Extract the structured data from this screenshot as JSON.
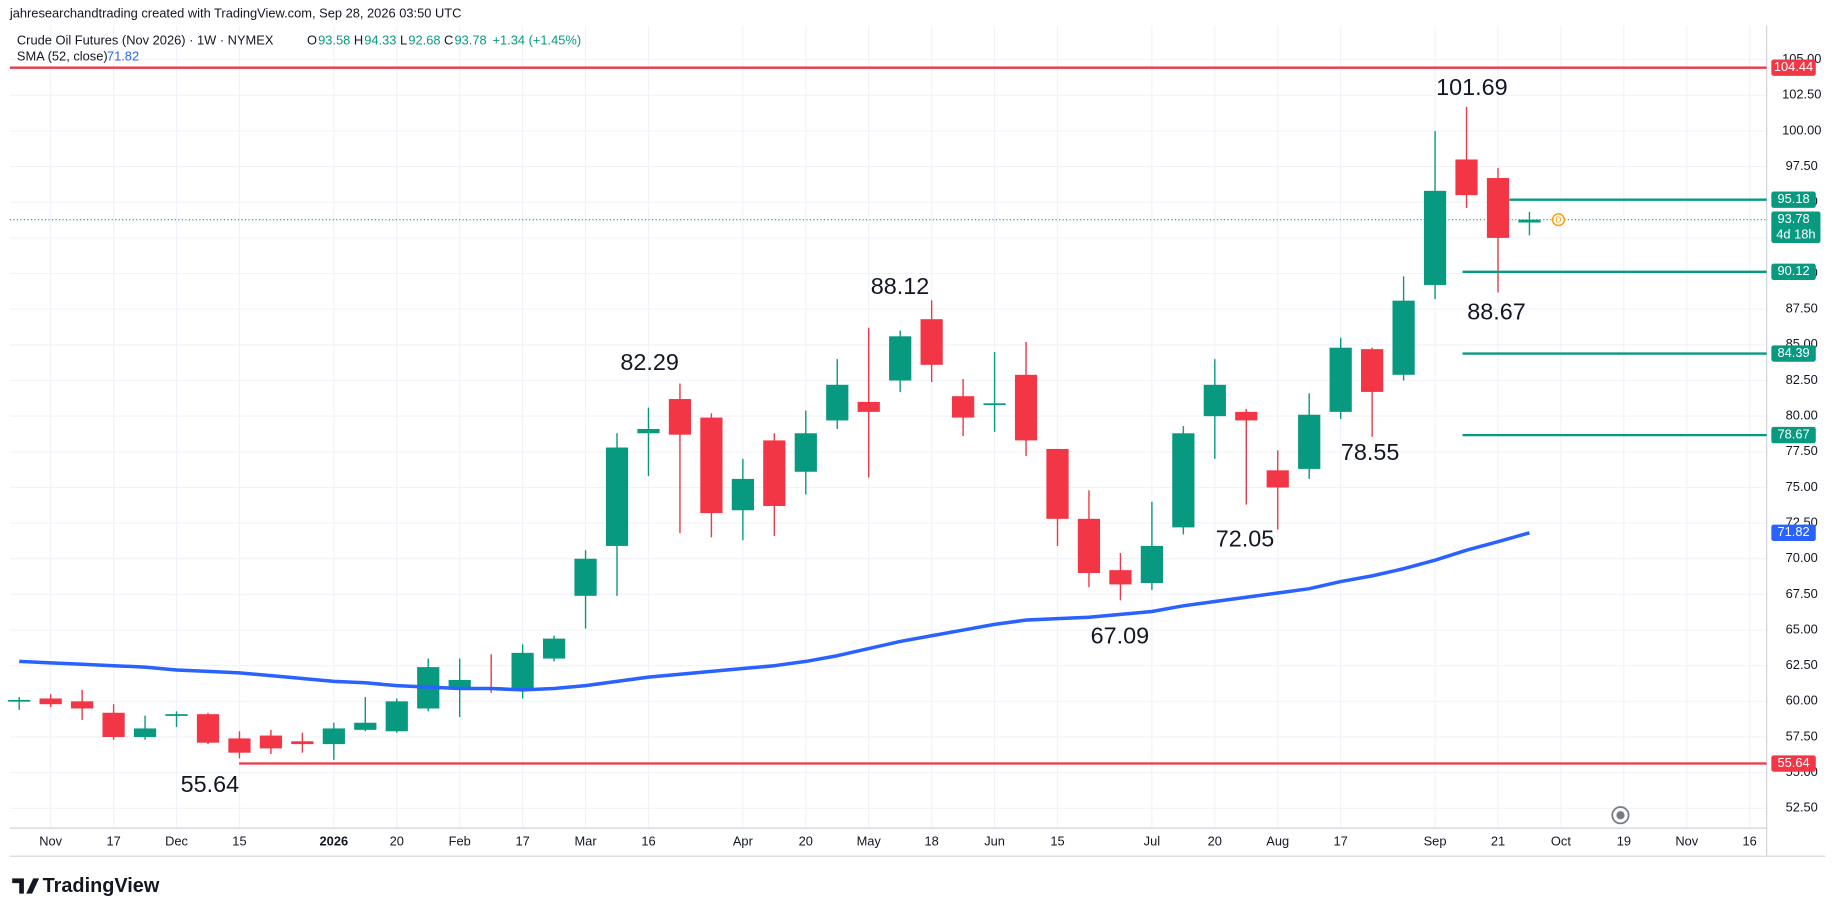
{
  "chart_data": {
    "type": "candlestick",
    "attribution": "jahresearchandtrading created with TradingView.com, Sep 28, 2026 03:50 UTC",
    "title": "Crude Oil Futures (Nov 2026) · 1W · NYMEX",
    "ohlc_legend": [
      {
        "key": "O",
        "value": "93.58"
      },
      {
        "key": "H",
        "value": "94.33"
      },
      {
        "key": "L",
        "value": "92.68"
      },
      {
        "key": "C",
        "value": "93.78"
      }
    ],
    "change": "+1.34 (+1.45%)",
    "sma_label": "SMA (52, close)",
    "sma_value": "71.82",
    "countdown": "4d 18h",
    "marker": "D",
    "logo": "TradingView",
    "categories": [
      null,
      "Nov",
      null,
      "17",
      null,
      "Dec",
      null,
      "15",
      null,
      null,
      "2026",
      null,
      "20",
      null,
      "Feb",
      null,
      "17",
      null,
      "Mar",
      null,
      "16",
      null,
      null,
      "Apr",
      null,
      "20",
      null,
      "May",
      null,
      "18",
      null,
      "Jun",
      null,
      "15",
      null,
      null,
      "Jul",
      null,
      "20",
      null,
      "Aug",
      null,
      "17",
      null,
      null,
      "Sep",
      null,
      "21",
      null,
      "Oct",
      null,
      "19",
      null,
      "Nov",
      null,
      "16"
    ],
    "open": [
      60,
      60.2,
      60,
      59.2,
      57.5,
      59,
      59.1,
      57.4,
      57.6,
      57.2,
      57,
      58,
      57.9,
      59.5,
      61,
      61,
      60.8,
      63,
      67.4,
      70.9,
      78.8,
      81.2,
      79.9,
      73.4,
      78.3,
      76.1,
      79.7,
      81,
      82.5,
      86.8,
      81.4,
      80.8,
      82.9,
      77.7,
      72.8,
      69.2,
      68.3,
      72.2,
      80,
      80.3,
      76.2,
      76.3,
      80.3,
      84.7,
      82.9,
      89.2,
      98,
      96.7,
      93.58,
      null,
      null,
      null,
      null,
      null,
      null,
      null
    ],
    "high": [
      60.3,
      60.5,
      60.8,
      59.8,
      59,
      59.3,
      59.2,
      57.9,
      58,
      57.8,
      58.5,
      60.3,
      60.2,
      63,
      63,
      63.3,
      64,
      64.6,
      70.6,
      78.8,
      80.6,
      82.29,
      80.2,
      77,
      78.8,
      80.4,
      84,
      86.2,
      86,
      88.12,
      82.6,
      84.5,
      85.2,
      77.7,
      74.8,
      70.4,
      74,
      79.3,
      84,
      80.5,
      77.6,
      81.6,
      85.5,
      84.8,
      89.8,
      100,
      101.69,
      97.4,
      94.33,
      null,
      null,
      null,
      null,
      null,
      null,
      null
    ],
    "low": [
      59.4,
      59.6,
      58.7,
      57.3,
      57.3,
      58.2,
      57,
      56,
      56.3,
      56.4,
      55.9,
      57.9,
      57.8,
      59.3,
      58.9,
      60.6,
      60.2,
      62.8,
      65.1,
      67.4,
      75.8,
      71.8,
      71.5,
      71.3,
      71.6,
      74.5,
      79.1,
      75.7,
      81.7,
      82.4,
      78.6,
      78.9,
      77.2,
      70.9,
      68,
      67.09,
      67.8,
      71.7,
      77,
      73.8,
      72.05,
      75.6,
      79.8,
      78.55,
      82.5,
      88.2,
      94.6,
      88.67,
      92.68,
      null,
      null,
      null,
      null,
      null,
      null,
      null
    ],
    "close": [
      60.1,
      59.8,
      59.5,
      57.5,
      58.1,
      59.1,
      57.1,
      56.4,
      56.7,
      57,
      58.1,
      58.5,
      60,
      62.4,
      61.5,
      60.8,
      63.4,
      64.4,
      70,
      77.8,
      79.1,
      78.7,
      73.2,
      75.6,
      73.7,
      78.8,
      82.2,
      80.3,
      85.6,
      83.6,
      79.9,
      80.9,
      78.3,
      72.8,
      69,
      68.2,
      70.9,
      78.8,
      82.2,
      79.7,
      75,
      80.1,
      84.8,
      81.7,
      88.1,
      95.8,
      95.5,
      92.5,
      93.78,
      null,
      null,
      null,
      null,
      null,
      null,
      null
    ],
    "up_color": "#089981",
    "down_color": "#f23645",
    "sma": {
      "color": "#2962ff",
      "values": [
        62.8,
        62.7,
        62.6,
        62.5,
        62.4,
        62.2,
        62.1,
        62,
        61.8,
        61.6,
        61.4,
        61.3,
        61.1,
        61,
        60.9,
        60.9,
        60.8,
        60.9,
        61.1,
        61.4,
        61.7,
        61.9,
        62.1,
        62.3,
        62.5,
        62.8,
        63.2,
        63.7,
        64.2,
        64.6,
        65,
        65.4,
        65.7,
        65.8,
        65.9,
        66.1,
        66.3,
        66.7,
        67,
        67.3,
        67.6,
        67.9,
        68.4,
        68.8,
        69.3,
        69.9,
        70.6,
        71.2,
        71.82,
        null,
        null,
        null,
        null,
        null,
        null,
        null
      ]
    },
    "levels": [
      {
        "value": 104.44,
        "color": "#f23645"
      },
      {
        "value": 95.18,
        "color": "#089981"
      },
      {
        "value": 90.12,
        "color": "#089981"
      },
      {
        "value": 84.39,
        "color": "#089981"
      },
      {
        "value": 78.67,
        "color": "#089981"
      },
      {
        "value": 55.64,
        "color": "#f23645"
      }
    ],
    "last_price": 93.78,
    "annotations": [
      "101.69",
      "88.67",
      "88.12",
      "82.29",
      "78.55",
      "72.05",
      "67.09",
      "55.64"
    ],
    "ylim": [
      51.11,
      107.38
    ],
    "yticks": [
      {
        "value": 52.5,
        "label": "52.50"
      },
      {
        "value": 55,
        "label": "55.00"
      },
      {
        "value": 57.5,
        "label": "57.50"
      },
      {
        "value": 60,
        "label": "60.00"
      },
      {
        "value": 62.5,
        "label": "62.50"
      },
      {
        "value": 65,
        "label": "65.00"
      },
      {
        "value": 67.5,
        "label": "67.50"
      },
      {
        "value": 70,
        "label": "70.00"
      },
      {
        "value": 72.5,
        "label": "72.50"
      },
      {
        "value": 75,
        "label": "75.00"
      },
      {
        "value": 77.5,
        "label": "77.50"
      },
      {
        "value": 80,
        "label": "80.00"
      },
      {
        "value": 82.5,
        "label": "82.50"
      },
      {
        "value": 85,
        "label": "85.00"
      },
      {
        "value": 87.5,
        "label": "87.50"
      },
      {
        "value": 90,
        "label": "90.00"
      },
      {
        "value": 92.5,
        "label": "92.50"
      },
      {
        "value": 95,
        "label": "95.00"
      },
      {
        "value": 97.5,
        "label": "97.50"
      },
      {
        "value": 100,
        "label": "100.00"
      },
      {
        "value": 102.5,
        "label": "102.50"
      },
      {
        "value": 105,
        "label": "105.00"
      }
    ],
    "grid": true
  }
}
